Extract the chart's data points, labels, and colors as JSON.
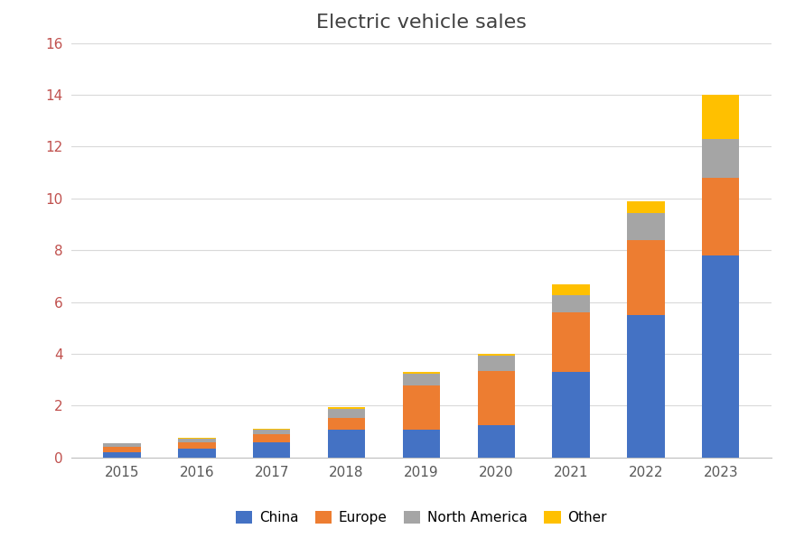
{
  "title": "Electric vehicle sales",
  "years": [
    2015,
    2016,
    2017,
    2018,
    2019,
    2020,
    2021,
    2022,
    2023
  ],
  "china": [
    0.21,
    0.35,
    0.58,
    1.06,
    1.06,
    1.25,
    3.3,
    5.5,
    7.8
  ],
  "europe": [
    0.21,
    0.22,
    0.3,
    0.45,
    1.7,
    2.1,
    2.3,
    2.9,
    3.0
  ],
  "north_america": [
    0.12,
    0.16,
    0.19,
    0.36,
    0.47,
    0.56,
    0.67,
    1.03,
    1.5
  ],
  "other": [
    0.02,
    0.04,
    0.04,
    0.08,
    0.06,
    0.1,
    0.4,
    0.45,
    1.7
  ],
  "colors": {
    "china": "#4472C4",
    "europe": "#ED7D31",
    "north_america": "#A5A5A5",
    "other": "#FFC000"
  },
  "ylim": [
    0,
    16
  ],
  "yticks": [
    0,
    2,
    4,
    6,
    8,
    10,
    12,
    14,
    16
  ],
  "legend_labels": [
    "China",
    "Europe",
    "North America",
    "Other"
  ],
  "background_color": "#FFFFFF",
  "title_fontsize": 16,
  "tick_color": "#C0504D",
  "axis_tick_fontsize": 11,
  "bar_width": 0.5,
  "grid_color": "#D9D9D9",
  "title_color": "#404040"
}
